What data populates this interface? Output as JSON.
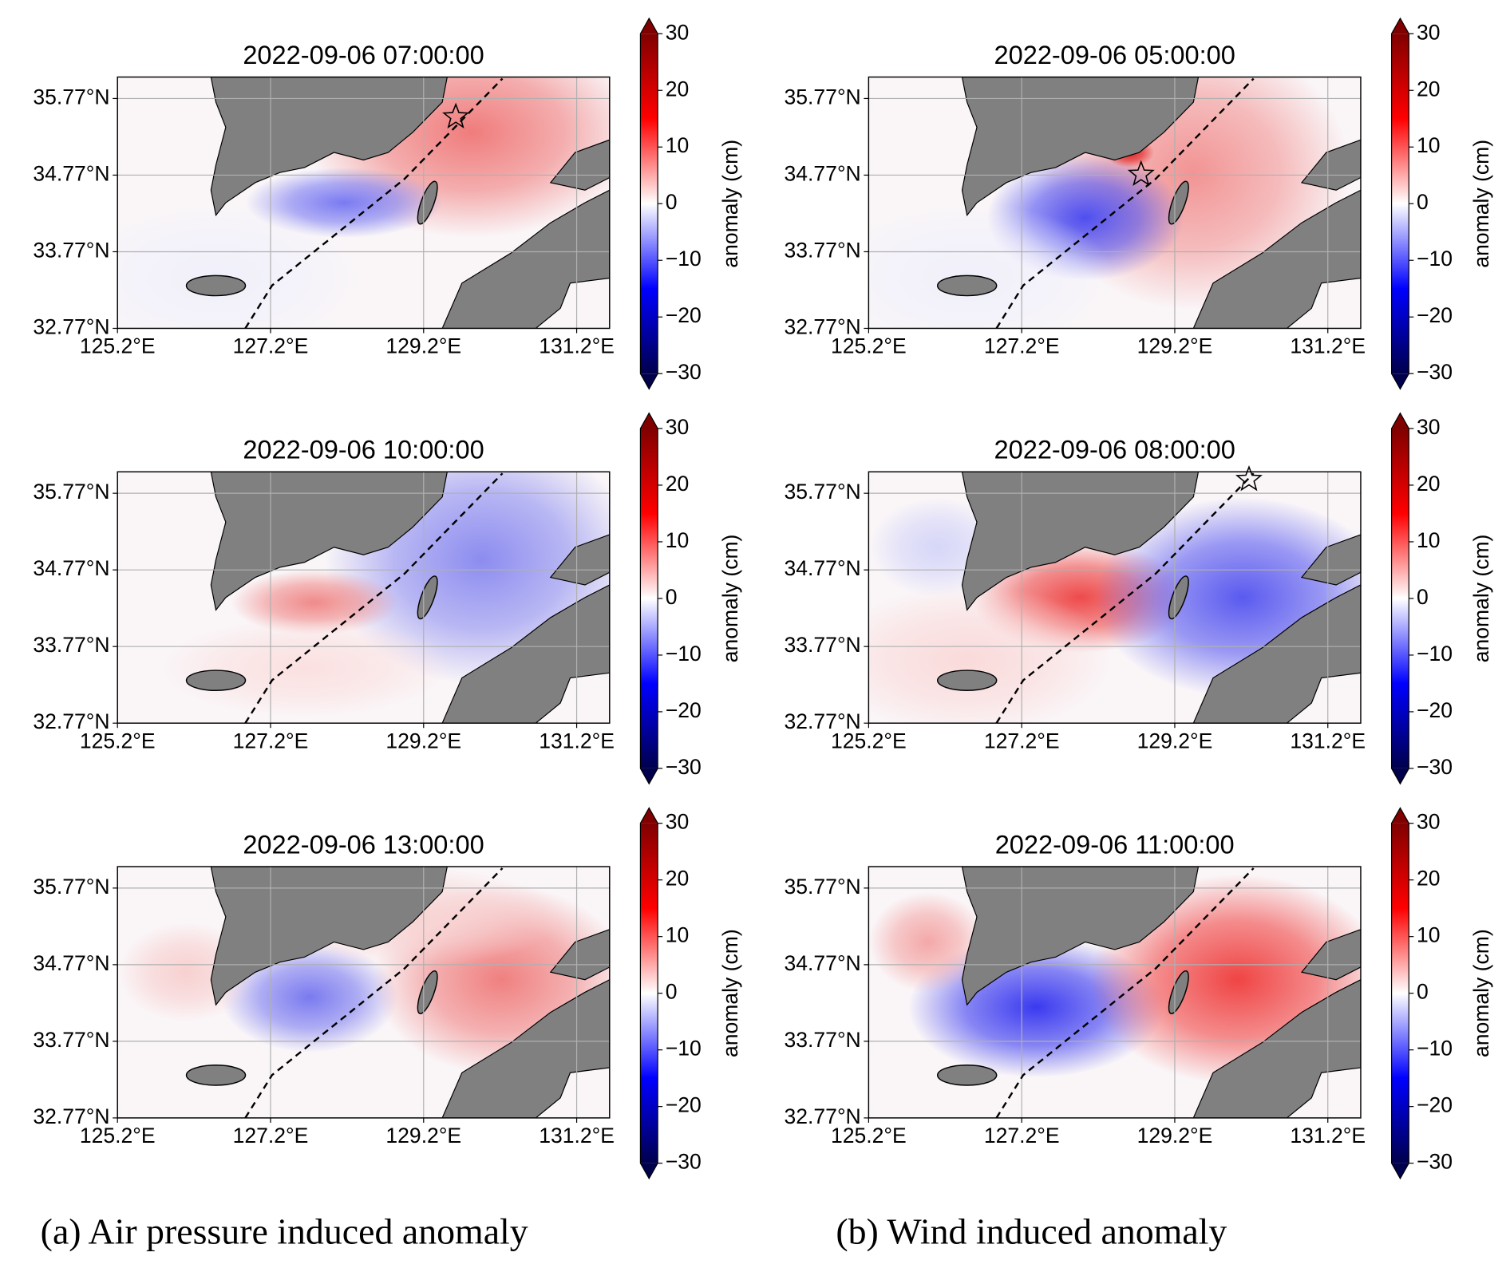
{
  "chart_data": [
    {
      "type": "map",
      "title": "2022-09-06 07:00:00",
      "xlim": [
        125.2,
        131.63
      ],
      "ylim": [
        32.77,
        36.05
      ],
      "xticks": [
        {
          "value": 125.2,
          "label": "125.2°E"
        },
        {
          "value": 127.2,
          "label": "127.2°E"
        },
        {
          "value": 129.2,
          "label": "129.2°E"
        },
        {
          "value": 131.2,
          "label": "131.2°E"
        }
      ],
      "yticks": [
        {
          "value": 32.77,
          "label": "32.77°N"
        },
        {
          "value": 33.77,
          "label": "33.77°N"
        },
        {
          "value": 34.77,
          "label": "34.77°N"
        },
        {
          "value": 35.77,
          "label": "35.77°N"
        }
      ],
      "grid": true,
      "track_lon": [
        126.87,
        127.22,
        128.95,
        130.23
      ],
      "track_lat": [
        32.77,
        33.33,
        34.72,
        36.03
      ],
      "star_lon": 129.62,
      "star_lat": 35.53,
      "colorbar": {
        "label": "anomaly (cm)",
        "lim": [
          -30,
          30
        ],
        "cmap": "seismic",
        "ticks": [
          {
            "value": -30,
            "label": "−30"
          },
          {
            "value": -20,
            "label": "−20"
          },
          {
            "value": -10,
            "label": "−10"
          },
          0,
          10,
          20,
          30
        ]
      }
    },
    {
      "type": "map",
      "title": "2022-09-06 05:00:00",
      "xlim": [
        125.2,
        131.63
      ],
      "ylim": [
        32.77,
        36.05
      ],
      "xticks": [
        {
          "value": 125.2,
          "label": "125.2°E"
        },
        {
          "value": 127.2,
          "label": "127.2°E"
        },
        {
          "value": 129.2,
          "label": "129.2°E"
        },
        {
          "value": 131.2,
          "label": "131.2°E"
        }
      ],
      "yticks": [
        {
          "value": 32.77,
          "label": "32.77°N"
        },
        {
          "value": 33.77,
          "label": "33.77°N"
        },
        {
          "value": 34.77,
          "label": "34.77°N"
        },
        {
          "value": 35.77,
          "label": "35.77°N"
        }
      ],
      "grid": true,
      "track_lon": [
        126.87,
        127.22,
        128.95,
        130.23
      ],
      "track_lat": [
        32.77,
        33.33,
        34.72,
        36.03
      ],
      "star_lon": 128.76,
      "star_lat": 34.78,
      "colorbar": {
        "label": "anomaly (cm)",
        "lim": [
          -30,
          30
        ],
        "cmap": "seismic",
        "ticks": [
          {
            "value": -30,
            "label": "−30"
          },
          {
            "value": -20,
            "label": "−20"
          },
          {
            "value": -10,
            "label": "−10"
          },
          0,
          10,
          20,
          30
        ]
      }
    },
    {
      "type": "map",
      "title": "2022-09-06 10:00:00",
      "xlim": [
        125.2,
        131.63
      ],
      "ylim": [
        32.77,
        36.05
      ],
      "xticks": [
        {
          "value": 125.2,
          "label": "125.2°E"
        },
        {
          "value": 127.2,
          "label": "127.2°E"
        },
        {
          "value": 129.2,
          "label": "129.2°E"
        },
        {
          "value": 131.2,
          "label": "131.2°E"
        }
      ],
      "yticks": [
        {
          "value": 32.77,
          "label": "32.77°N"
        },
        {
          "value": 33.77,
          "label": "33.77°N"
        },
        {
          "value": 34.77,
          "label": "34.77°N"
        },
        {
          "value": 35.77,
          "label": "35.77°N"
        }
      ],
      "grid": true,
      "track_lon": [
        126.87,
        127.22,
        128.95,
        130.23
      ],
      "track_lat": [
        32.77,
        33.33,
        34.72,
        36.03
      ],
      "colorbar": {
        "label": "anomaly (cm)",
        "lim": [
          -30,
          30
        ],
        "cmap": "seismic",
        "ticks": [
          {
            "value": -30,
            "label": "−30"
          },
          {
            "value": -20,
            "label": "−20"
          },
          {
            "value": -10,
            "label": "−10"
          },
          0,
          10,
          20,
          30
        ]
      }
    },
    {
      "type": "map",
      "title": "2022-09-06 08:00:00",
      "xlim": [
        125.2,
        131.63
      ],
      "ylim": [
        32.77,
        36.05
      ],
      "xticks": [
        {
          "value": 125.2,
          "label": "125.2°E"
        },
        {
          "value": 127.2,
          "label": "127.2°E"
        },
        {
          "value": 129.2,
          "label": "129.2°E"
        },
        {
          "value": 131.2,
          "label": "131.2°E"
        }
      ],
      "yticks": [
        {
          "value": 32.77,
          "label": "32.77°N"
        },
        {
          "value": 33.77,
          "label": "33.77°N"
        },
        {
          "value": 34.77,
          "label": "34.77°N"
        },
        {
          "value": 35.77,
          "label": "35.77°N"
        }
      ],
      "grid": true,
      "track_lon": [
        126.87,
        127.22,
        128.95,
        130.23
      ],
      "track_lat": [
        32.77,
        33.33,
        34.72,
        36.03
      ],
      "star_lon": 130.17,
      "star_lat": 35.95,
      "colorbar": {
        "label": "anomaly (cm)",
        "lim": [
          -30,
          30
        ],
        "cmap": "seismic",
        "ticks": [
          {
            "value": -30,
            "label": "−30"
          },
          {
            "value": -20,
            "label": "−20"
          },
          {
            "value": -10,
            "label": "−10"
          },
          0,
          10,
          20,
          30
        ]
      }
    },
    {
      "type": "map",
      "title": "2022-09-06 13:00:00",
      "xlim": [
        125.2,
        131.63
      ],
      "ylim": [
        32.77,
        36.05
      ],
      "xticks": [
        {
          "value": 125.2,
          "label": "125.2°E"
        },
        {
          "value": 127.2,
          "label": "127.2°E"
        },
        {
          "value": 129.2,
          "label": "129.2°E"
        },
        {
          "value": 131.2,
          "label": "131.2°E"
        }
      ],
      "yticks": [
        {
          "value": 32.77,
          "label": "32.77°N"
        },
        {
          "value": 33.77,
          "label": "33.77°N"
        },
        {
          "value": 34.77,
          "label": "34.77°N"
        },
        {
          "value": 35.77,
          "label": "35.77°N"
        }
      ],
      "grid": true,
      "track_lon": [
        126.87,
        127.22,
        128.95,
        130.23
      ],
      "track_lat": [
        32.77,
        33.33,
        34.72,
        36.03
      ],
      "colorbar": {
        "label": "anomaly (cm)",
        "lim": [
          -30,
          30
        ],
        "cmap": "seismic",
        "ticks": [
          {
            "value": -30,
            "label": "−30"
          },
          {
            "value": -20,
            "label": "−20"
          },
          {
            "value": -10,
            "label": "−10"
          },
          0,
          10,
          20,
          30
        ]
      }
    },
    {
      "type": "map",
      "title": "2022-09-06 11:00:00",
      "xlim": [
        125.2,
        131.63
      ],
      "ylim": [
        32.77,
        36.05
      ],
      "xticks": [
        {
          "value": 125.2,
          "label": "125.2°E"
        },
        {
          "value": 127.2,
          "label": "127.2°E"
        },
        {
          "value": 129.2,
          "label": "129.2°E"
        },
        {
          "value": 131.2,
          "label": "131.2°E"
        }
      ],
      "yticks": [
        {
          "value": 32.77,
          "label": "32.77°N"
        },
        {
          "value": 33.77,
          "label": "33.77°N"
        },
        {
          "value": 34.77,
          "label": "34.77°N"
        },
        {
          "value": 35.77,
          "label": "35.77°N"
        }
      ],
      "grid": true,
      "track_lon": [
        126.87,
        127.22,
        128.95,
        130.23
      ],
      "track_lat": [
        32.77,
        33.33,
        34.72,
        36.03
      ],
      "colorbar": {
        "label": "anomaly (cm)",
        "lim": [
          -30,
          30
        ],
        "cmap": "seismic",
        "ticks": [
          {
            "value": -30,
            "label": "−30"
          },
          {
            "value": -20,
            "label": "−20"
          },
          {
            "value": -10,
            "label": "−10"
          },
          0,
          10,
          20,
          30
        ]
      }
    }
  ],
  "captions": [
    "(a) Air pressure induced anomaly",
    "(b) Wind induced anomaly"
  ]
}
